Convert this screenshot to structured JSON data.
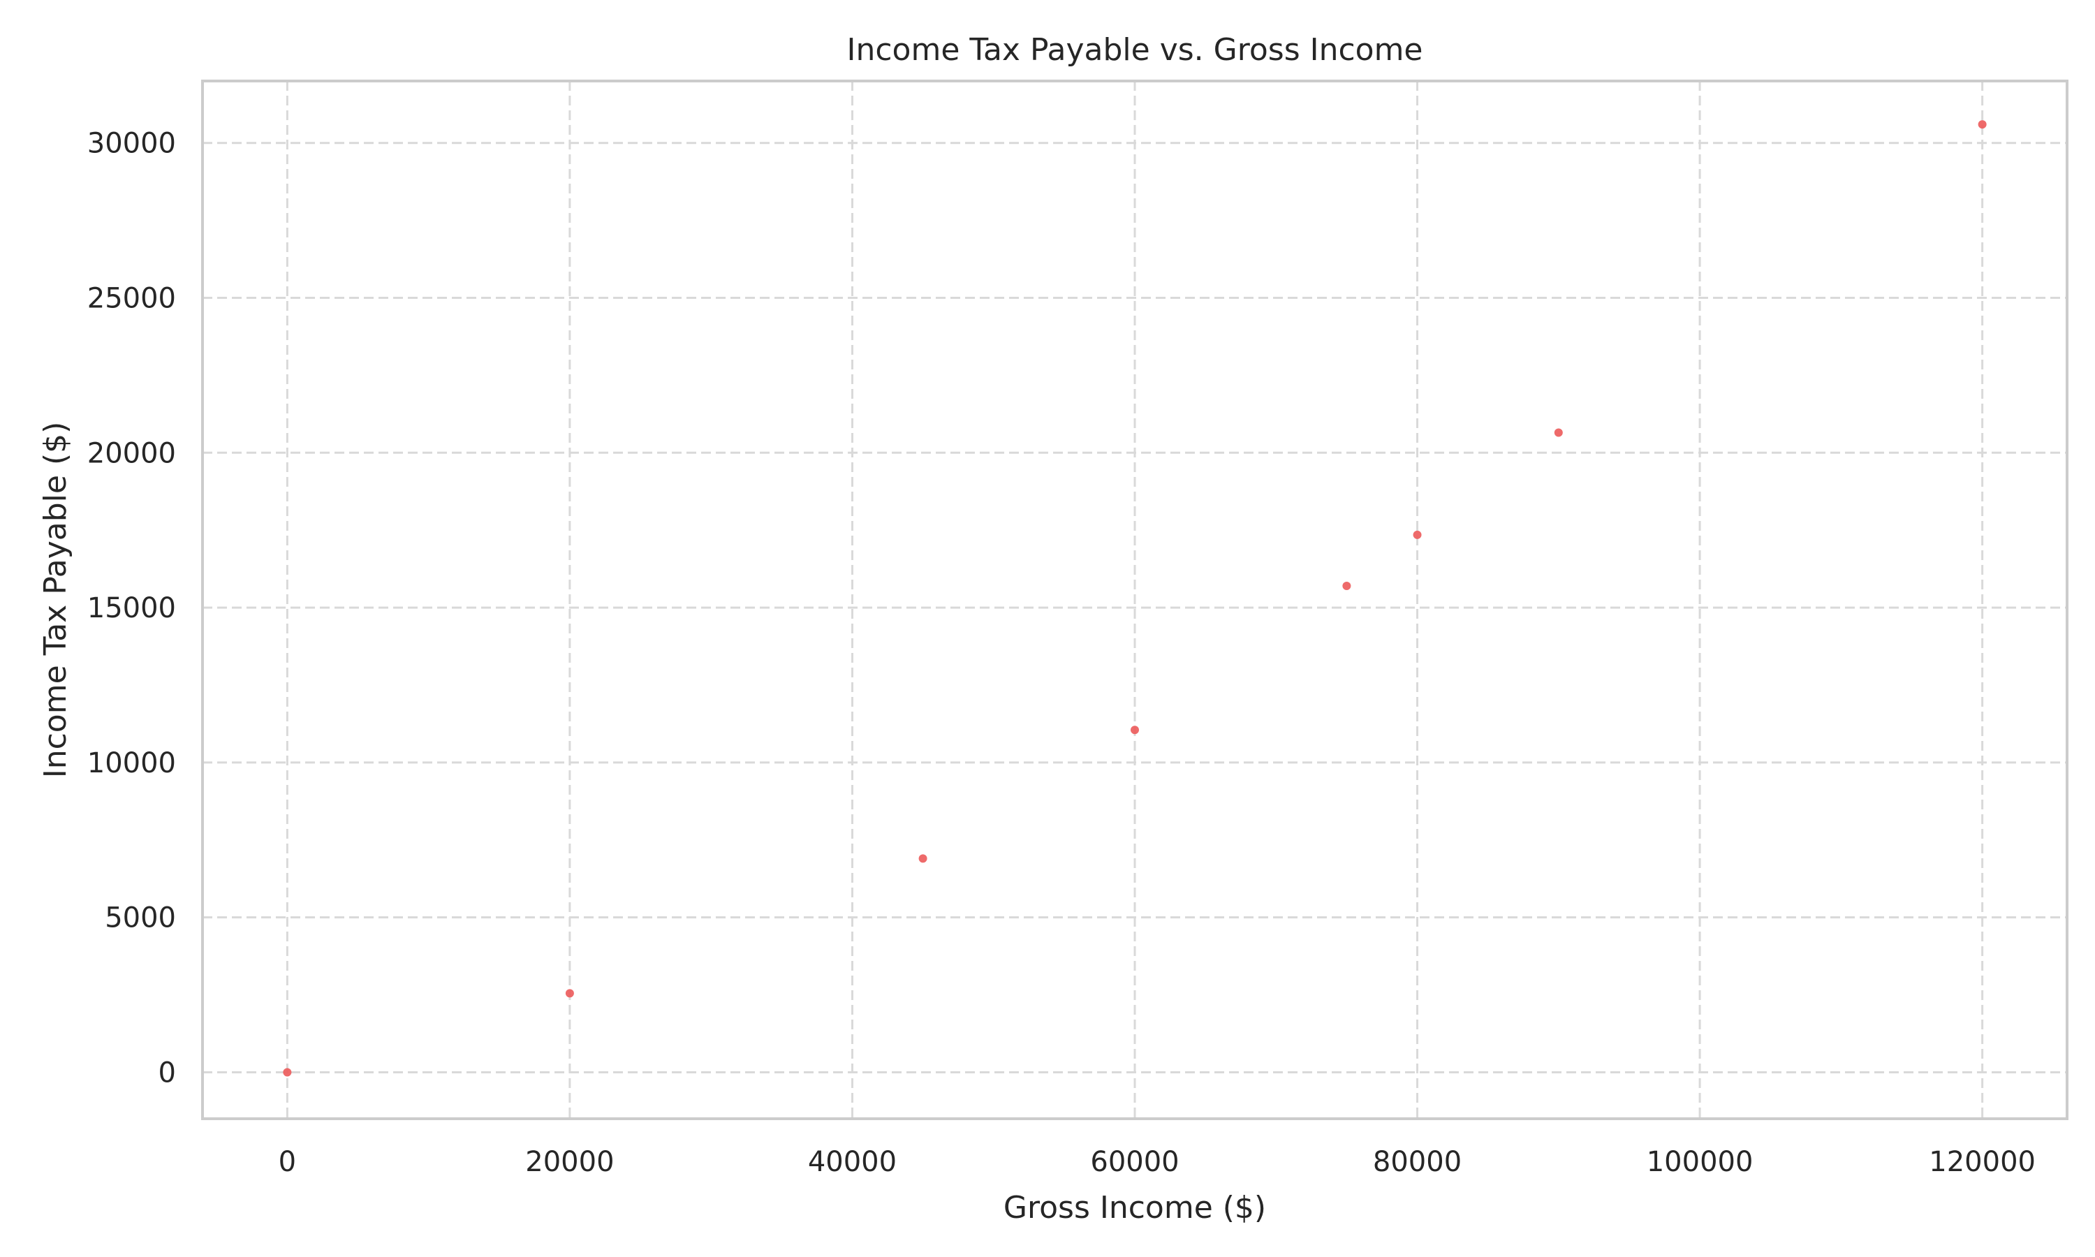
{
  "chart_data": {
    "type": "scatter",
    "title": "Income Tax Payable vs. Gross Income",
    "xlabel": "Gross Income ($)",
    "ylabel": "Income Tax Payable ($)",
    "xlim": [
      -6000,
      126000
    ],
    "ylim": [
      -1500,
      32000
    ],
    "xticks": [
      0,
      20000,
      40000,
      60000,
      80000,
      100000,
      120000
    ],
    "xtick_labels": [
      "0",
      "20000",
      "40000",
      "60000",
      "80000",
      "100000",
      "120000"
    ],
    "yticks": [
      0,
      5000,
      10000,
      15000,
      20000,
      25000,
      30000
    ],
    "ytick_labels": [
      "0",
      "5000",
      "10000",
      "15000",
      "20000",
      "25000",
      "30000"
    ],
    "grid": true,
    "marker_color": "#ec5a5a",
    "points": [
      {
        "x": 0,
        "y": 0
      },
      {
        "x": 20000,
        "y": 2550
      },
      {
        "x": 45000,
        "y": 6900
      },
      {
        "x": 60000,
        "y": 11050
      },
      {
        "x": 75000,
        "y": 15700
      },
      {
        "x": 80000,
        "y": 17350
      },
      {
        "x": 90000,
        "y": 20650
      },
      {
        "x": 120000,
        "y": 30600
      }
    ]
  }
}
